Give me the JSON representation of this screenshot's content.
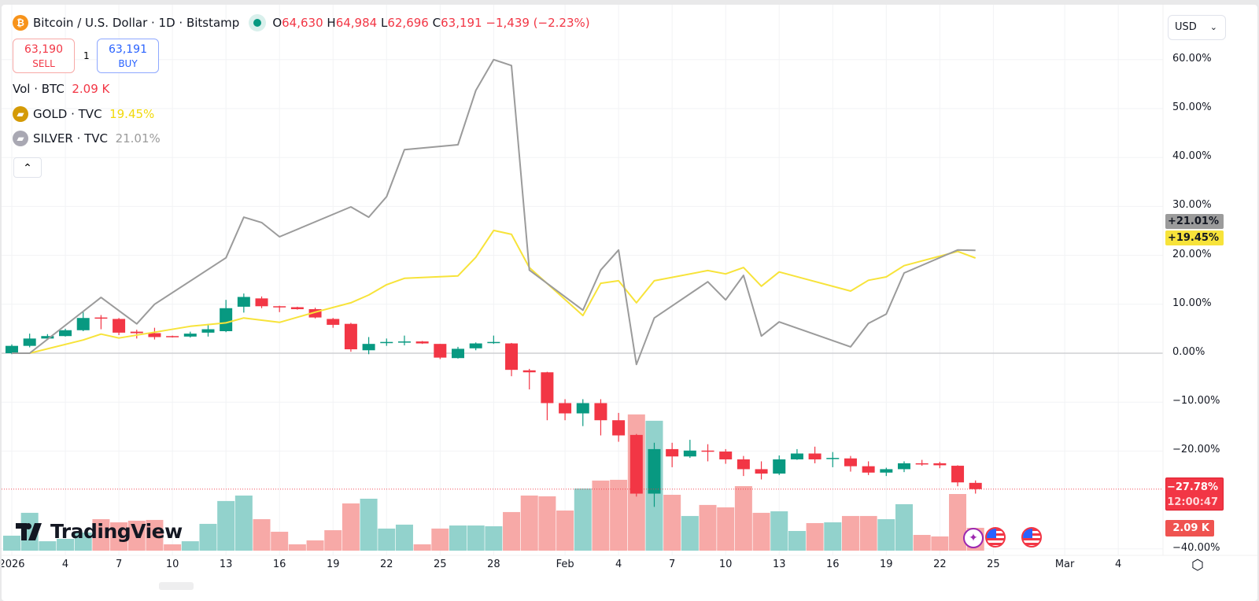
{
  "header": {
    "symbol_title": "Bitcoin / U.S. Dollar · 1D · Bitstamp",
    "open_label": "O",
    "open": "64,630",
    "high_label": "H",
    "high": "64,984",
    "low_label": "L",
    "low": "62,696",
    "close_label": "C",
    "close": "63,191",
    "change": "−1,439 (−2.23%)"
  },
  "trade": {
    "sell_price": "63,190",
    "sell_label": "SELL",
    "spread": "1",
    "buy_price": "63,191",
    "buy_label": "BUY"
  },
  "legend": {
    "volume_label": "Vol · BTC",
    "volume_value": "2.09 K",
    "gold_label": "GOLD · TVC",
    "gold_value": "19.45%",
    "silver_label": "SILVER · TVC",
    "silver_value": "21.01%",
    "collapse_icon": "chevron-up-icon"
  },
  "currency_select": "USD",
  "logo": "TradingView",
  "colors": {
    "up": "#089981",
    "down": "#f23645",
    "gold": "#f7e33a",
    "silver": "#9b9b9b",
    "bitcoin": "#f7931a"
  },
  "badges": {
    "silver": "+21.01%",
    "gold": "+19.45%",
    "price_pct": "−27.78%",
    "countdown": "12:00:47",
    "volume": "2.09 K"
  },
  "chart_data": {
    "type": "candlestick",
    "scale": "percent",
    "yticks": [
      "60.00%",
      "50.00%",
      "40.00%",
      "30.00%",
      "20.00%",
      "10.00%",
      "0.00%",
      "−10.00%",
      "−20.00%",
      "−40.00%"
    ],
    "ytick_values": [
      60,
      50,
      40,
      30,
      20,
      10,
      0,
      -10,
      -20,
      -40
    ],
    "ylim": [
      -40,
      60
    ],
    "xticks": [
      {
        "label": "2026",
        "date": "2026-01-01"
      },
      {
        "label": "4",
        "date": "2026-01-04"
      },
      {
        "label": "7",
        "date": "2026-01-07"
      },
      {
        "label": "10",
        "date": "2026-01-10"
      },
      {
        "label": "13",
        "date": "2026-01-13"
      },
      {
        "label": "16",
        "date": "2026-01-16"
      },
      {
        "label": "19",
        "date": "2026-01-19"
      },
      {
        "label": "22",
        "date": "2026-01-22"
      },
      {
        "label": "25",
        "date": "2026-01-25"
      },
      {
        "label": "28",
        "date": "2026-01-28"
      },
      {
        "label": "Feb",
        "date": "2026-02-01"
      },
      {
        "label": "4",
        "date": "2026-02-04"
      },
      {
        "label": "7",
        "date": "2026-02-07"
      },
      {
        "label": "10",
        "date": "2026-02-10"
      },
      {
        "label": "13",
        "date": "2026-02-13"
      },
      {
        "label": "16",
        "date": "2026-02-16"
      },
      {
        "label": "19",
        "date": "2026-02-19"
      },
      {
        "label": "22",
        "date": "2026-02-22"
      },
      {
        "label": "25",
        "date": "2026-02-25"
      },
      {
        "label": "Mar",
        "date": "2026-03-01"
      },
      {
        "label": "4",
        "date": "2026-03-04"
      }
    ],
    "candle_fields": [
      "date",
      "open",
      "high",
      "low",
      "close"
    ],
    "candles": [
      [
        "2026-01-01",
        0,
        1.8,
        -0.2,
        1.5
      ],
      [
        "2026-01-02",
        1.5,
        4,
        1.2,
        3
      ],
      [
        "2026-01-03",
        3,
        3.9,
        2.9,
        3.5
      ],
      [
        "2026-01-04",
        3.5,
        5,
        3.4,
        4.7
      ],
      [
        "2026-01-05",
        4.7,
        8.5,
        4.5,
        7.2
      ],
      [
        "2026-01-06",
        7.3,
        7.8,
        4.9,
        7.1
      ],
      [
        "2026-01-07",
        7,
        7.2,
        3.7,
        4.2
      ],
      [
        "2026-01-08",
        4.4,
        4.8,
        3,
        4.1
      ],
      [
        "2026-01-09",
        4.1,
        5.2,
        2.8,
        3.3
      ],
      [
        "2026-01-10",
        3.5,
        3.6,
        3.2,
        3.3
      ],
      [
        "2026-01-11",
        3.4,
        4.4,
        3.2,
        4.0
      ],
      [
        "2026-01-12",
        4.2,
        6,
        3.4,
        4.9
      ],
      [
        "2026-01-13",
        4.5,
        10.9,
        4.3,
        9.2
      ],
      [
        "2026-01-14",
        9.5,
        12.2,
        8.3,
        11.5
      ],
      [
        "2026-01-15",
        11.2,
        11.6,
        9.2,
        9.6
      ],
      [
        "2026-01-16",
        9.6,
        9.7,
        8.4,
        9.5
      ],
      [
        "2026-01-17",
        9.4,
        9.5,
        8.9,
        9.0
      ],
      [
        "2026-01-18",
        9.0,
        9.3,
        7.1,
        7.3
      ],
      [
        "2026-01-19",
        7.0,
        7.2,
        5.2,
        5.8
      ],
      [
        "2026-01-20",
        6.0,
        6.2,
        0.3,
        0.8
      ],
      [
        "2026-01-21",
        0.6,
        3.3,
        -0.2,
        1.9
      ],
      [
        "2026-01-22",
        2.2,
        3.0,
        1.5,
        2.3
      ],
      [
        "2026-01-23",
        2.3,
        3.6,
        1.6,
        2.4
      ],
      [
        "2026-01-24",
        2.4,
        2.5,
        1.9,
        2.0
      ],
      [
        "2026-01-25",
        1.9,
        1.9,
        -1.2,
        -0.9
      ],
      [
        "2026-01-26",
        -1.0,
        1.3,
        -1.1,
        0.9
      ],
      [
        "2026-01-27",
        1.0,
        2.2,
        0.6,
        2.0
      ],
      [
        "2026-01-28",
        2.2,
        3.6,
        1.9,
        2.3
      ],
      [
        "2026-01-29",
        2.0,
        2.1,
        -4.7,
        -3.4
      ],
      [
        "2026-01-30",
        -3.5,
        -3.2,
        -7.4,
        -3.9
      ],
      [
        "2026-01-31",
        -3.9,
        -3.8,
        -13.7,
        -10.2
      ],
      [
        "2026-02-01",
        -10.2,
        -9.4,
        -13.7,
        -12.3
      ],
      [
        "2026-02-02",
        -12.3,
        -9.4,
        -14.9,
        -10.2
      ],
      [
        "2026-02-03",
        -10.2,
        -9.4,
        -16.8,
        -13.7
      ],
      [
        "2026-02-04",
        -13.7,
        -12.2,
        -18.1,
        -16.8
      ],
      [
        "2026-02-05",
        -16.7,
        -16.5,
        -29.3,
        -28.7
      ],
      [
        "2026-02-06",
        -28.7,
        -18.3,
        -31.4,
        -19.6
      ],
      [
        "2026-02-07",
        -19.6,
        -18.3,
        -23.3,
        -21.1
      ],
      [
        "2026-02-08",
        -21.1,
        -17.7,
        -21.4,
        -19.9
      ],
      [
        "2026-02-09",
        -19.9,
        -18.6,
        -22.1,
        -20.1
      ],
      [
        "2026-02-10",
        -20.1,
        -19.6,
        -22.6,
        -21.7
      ],
      [
        "2026-02-11",
        -21.7,
        -21.0,
        -25.1,
        -23.7
      ],
      [
        "2026-02-12",
        -23.7,
        -22.1,
        -25.8,
        -24.6
      ],
      [
        "2026-02-13",
        -24.6,
        -20.9,
        -24.9,
        -21.7
      ],
      [
        "2026-02-14",
        -21.7,
        -19.6,
        -21.8,
        -20.5
      ],
      [
        "2026-02-15",
        -20.5,
        -19.1,
        -22.5,
        -21.7
      ],
      [
        "2026-02-16",
        -21.5,
        -20.2,
        -23.3,
        -21.4
      ],
      [
        "2026-02-17",
        -21.5,
        -21.0,
        -24.2,
        -23.1
      ],
      [
        "2026-02-18",
        -23.1,
        -22.1,
        -24.9,
        -24.4
      ],
      [
        "2026-02-19",
        -24.4,
        -23.4,
        -25.1,
        -23.7
      ],
      [
        "2026-02-20",
        -23.7,
        -22.1,
        -24.3,
        -22.5
      ],
      [
        "2026-02-21",
        -22.5,
        -21.8,
        -23.0,
        -22.6
      ],
      [
        "2026-02-22",
        -22.5,
        -22.2,
        -23.5,
        -22.9
      ],
      [
        "2026-02-23",
        -23.0,
        -22.9,
        -27.2,
        -26.4
      ],
      [
        "2026-02-24",
        -26.5,
        -26.0,
        -28.7,
        -27.78
      ]
    ],
    "volume_k": [
      1.37,
      3.46,
      0.86,
      1.08,
      1.66,
      2.88,
      2.59,
      2.74,
      2.81,
      0.58,
      0.86,
      2.45,
      4.54,
      5.04,
      2.88,
      1.73,
      0.58,
      0.94,
      1.87,
      4.32,
      4.75,
      2.02,
      2.38,
      0.58,
      2.02,
      2.3,
      2.3,
      2.23,
      3.53,
      5.04,
      4.97,
      3.67,
      5.69,
      6.41,
      6.48,
      12.46,
      11.88,
      5.11,
      3.17,
      4.18,
      3.96,
      5.9,
      3.46,
      3.6,
      1.8,
      2.52,
      2.59,
      3.17,
      3.17,
      2.88,
      4.25,
      1.44,
      1.3,
      5.18,
      2.09
    ],
    "series": [
      {
        "name": "GOLD · TVC",
        "points": [
          [
            "2026-01-01",
            0
          ],
          [
            "2026-01-02",
            0
          ],
          [
            "2026-01-05",
            2.7
          ],
          [
            "2026-01-06",
            3.9
          ],
          [
            "2026-01-07",
            3.1
          ],
          [
            "2026-01-09",
            4.3
          ],
          [
            "2026-01-11",
            5.5
          ],
          [
            "2026-01-13",
            6.2
          ],
          [
            "2026-01-14",
            7.2
          ],
          [
            "2026-01-16",
            6.3
          ],
          [
            "2026-01-18",
            8.4
          ],
          [
            "2026-01-20",
            10.3
          ],
          [
            "2026-01-21",
            11.9
          ],
          [
            "2026-01-22",
            14.0
          ],
          [
            "2026-01-23",
            15.3
          ],
          [
            "2026-01-26",
            15.8
          ],
          [
            "2026-01-27",
            19.6
          ],
          [
            "2026-01-28",
            25.1
          ],
          [
            "2026-01-29",
            24.3
          ],
          [
            "2026-01-30",
            17.5
          ],
          [
            "2026-02-02",
            7.7
          ],
          [
            "2026-02-03",
            14.3
          ],
          [
            "2026-02-04",
            14.8
          ],
          [
            "2026-02-05",
            10.3
          ],
          [
            "2026-02-06",
            14.8
          ],
          [
            "2026-02-09",
            16.9
          ],
          [
            "2026-02-10",
            16.2
          ],
          [
            "2026-02-11",
            17.5
          ],
          [
            "2026-02-12",
            13.7
          ],
          [
            "2026-02-13",
            16.6
          ],
          [
            "2026-02-17",
            12.7
          ],
          [
            "2026-02-18",
            14.9
          ],
          [
            "2026-02-19",
            15.6
          ],
          [
            "2026-02-20",
            17.9
          ],
          [
            "2026-02-23",
            20.8
          ],
          [
            "2026-02-24",
            19.45
          ]
        ]
      },
      {
        "name": "SILVER · TVC",
        "points": [
          [
            "2026-01-01",
            0
          ],
          [
            "2026-01-02",
            0
          ],
          [
            "2026-01-06",
            11.4
          ],
          [
            "2026-01-08",
            6.0
          ],
          [
            "2026-01-09",
            10.0
          ],
          [
            "2026-01-13",
            19.5
          ],
          [
            "2026-01-14",
            27.8
          ],
          [
            "2026-01-15",
            26.7
          ],
          [
            "2026-01-16",
            23.8
          ],
          [
            "2026-01-20",
            29.9
          ],
          [
            "2026-01-21",
            27.8
          ],
          [
            "2026-01-22",
            32.0
          ],
          [
            "2026-01-23",
            41.6
          ],
          [
            "2026-01-26",
            42.6
          ],
          [
            "2026-01-27",
            53.7
          ],
          [
            "2026-01-28",
            60.0
          ],
          [
            "2026-01-29",
            58.8
          ],
          [
            "2026-01-30",
            17.0
          ],
          [
            "2026-02-02",
            8.8
          ],
          [
            "2026-02-03",
            17.0
          ],
          [
            "2026-02-04",
            21.1
          ],
          [
            "2026-02-05",
            -2.3
          ],
          [
            "2026-02-06",
            7.2
          ],
          [
            "2026-02-09",
            14.6
          ],
          [
            "2026-02-10",
            10.9
          ],
          [
            "2026-02-11",
            15.9
          ],
          [
            "2026-02-12",
            3.5
          ],
          [
            "2026-02-13",
            6.4
          ],
          [
            "2026-02-17",
            1.3
          ],
          [
            "2026-02-18",
            6.1
          ],
          [
            "2026-02-19",
            8.0
          ],
          [
            "2026-02-20",
            16.4
          ],
          [
            "2026-02-23",
            21.1
          ],
          [
            "2026-02-24",
            21.01
          ]
        ]
      }
    ]
  }
}
